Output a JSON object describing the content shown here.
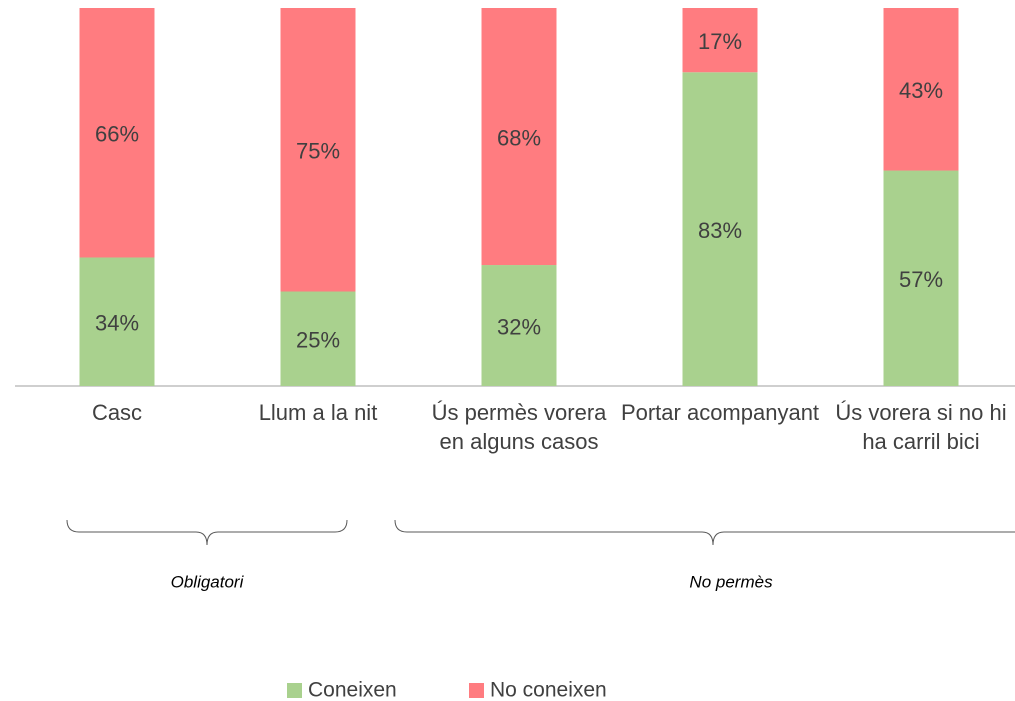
{
  "chart_data": {
    "type": "stacked_bar",
    "categories": [
      "Casc",
      "Llum a la nit",
      "Ús permès vorera en alguns casos",
      "Portar acompanyant",
      "Ús vorera si no hi ha carril bici"
    ],
    "series": [
      {
        "name": "Coneixen",
        "color": "#a9d18e",
        "values": [
          34,
          25,
          32,
          83,
          57
        ],
        "value_labels": [
          "34%",
          "25%",
          "32%",
          "83%",
          "57%"
        ]
      },
      {
        "name": "No coneixen",
        "color": "#ff7c80",
        "values": [
          66,
          75,
          68,
          17,
          43
        ],
        "value_labels": [
          "66%",
          "75%",
          "68%",
          "17%",
          "43%"
        ]
      }
    ],
    "ylim": [
      0,
      100
    ],
    "annotations": [
      "Obligatori",
      "No permès"
    ],
    "legend": "bottom"
  }
}
